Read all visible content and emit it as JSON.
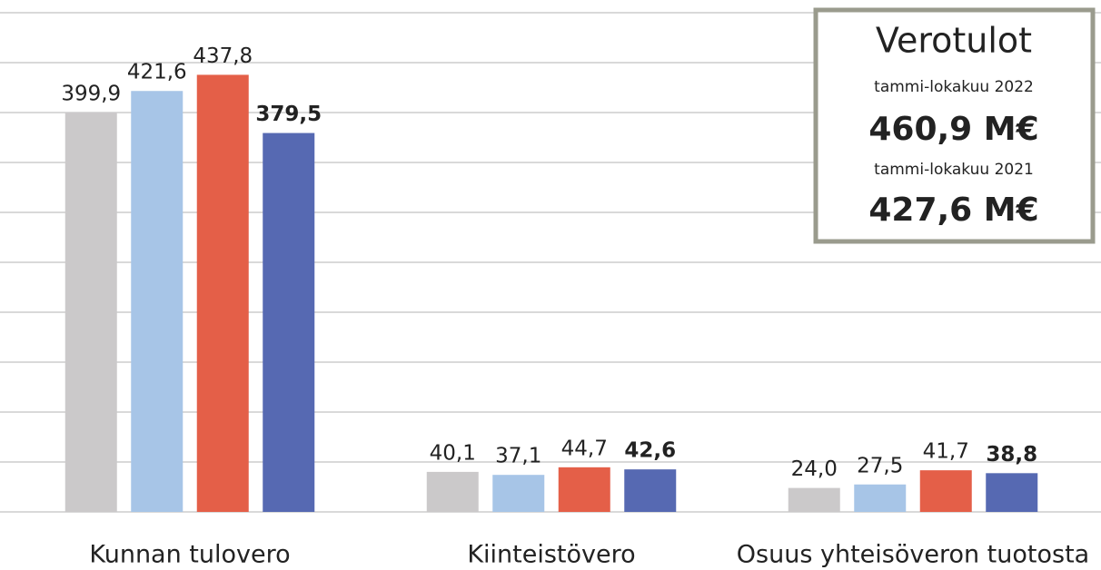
{
  "chart_data": {
    "type": "bar",
    "categories": [
      "Kunnan tulovero",
      "Kiinteistövero",
      "Osuus yhteisöveron tuotosta"
    ],
    "series": [
      {
        "color": "#cbc9ca",
        "values": [
          399.9,
          40.1,
          24.0
        ],
        "value_labels": [
          "399,9",
          "40,1",
          "24,0"
        ]
      },
      {
        "color": "#a7c5e7",
        "values": [
          421.6,
          37.1,
          27.5
        ],
        "value_labels": [
          "421,6",
          "37,1",
          "27,5"
        ]
      },
      {
        "color": "#e45f48",
        "values": [
          437.8,
          44.7,
          41.7
        ],
        "value_labels": [
          "437,8",
          "44,7",
          "41,7"
        ]
      },
      {
        "color": "#5669b2",
        "values": [
          379.5,
          42.6,
          38.8
        ],
        "value_labels": [
          "379,5",
          "42,6",
          "38,8"
        ],
        "bold_labels": true
      }
    ],
    "ylim": [
      0,
      500
    ],
    "yticks": [
      0,
      50,
      100,
      150,
      200,
      250,
      300,
      350,
      400,
      450,
      500
    ],
    "grid": true,
    "annotation": {
      "title": "Verotulot",
      "lines": [
        {
          "period": "tammi-lokakuu 2022",
          "amount": "460,9 M€"
        },
        {
          "period": "tammi-lokakuu 2021",
          "amount": "427,6 M€"
        }
      ]
    }
  }
}
